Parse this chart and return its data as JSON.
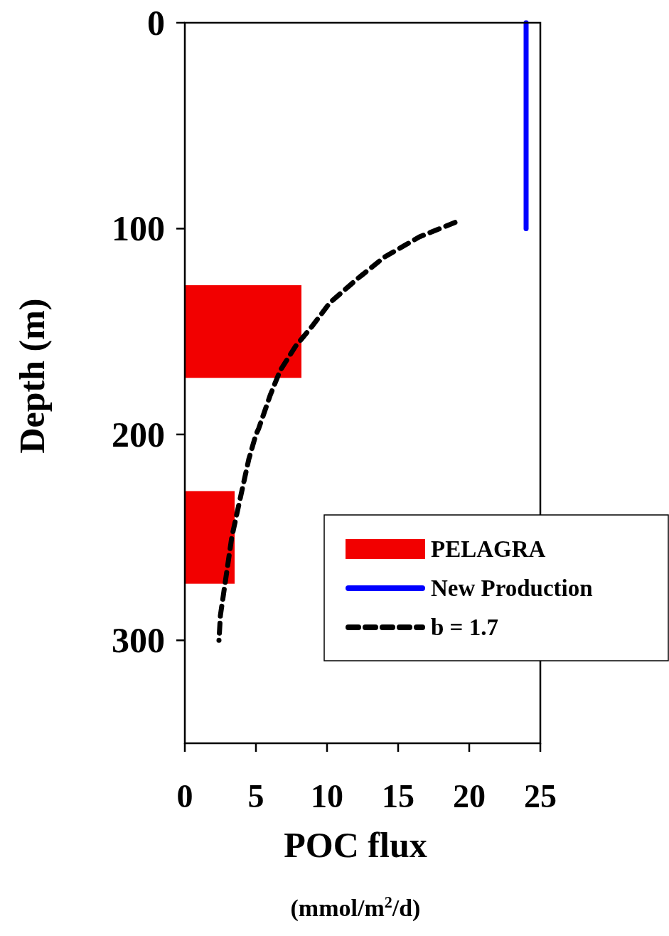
{
  "chart_data": {
    "type": "bar",
    "orientation": "horizontal",
    "xlabel": "POC flux\n(mmol/m$^{2}$/d)",
    "ylabel": "Depth (m)",
    "xlim": [
      0,
      25
    ],
    "xticks": [
      0,
      5,
      10,
      15,
      20,
      25
    ],
    "ylim": [
      350,
      0
    ],
    "yticks": [
      0,
      100,
      200,
      300
    ],
    "legend": "bottom right",
    "grid": false,
    "series": [
      {
        "name": "PELAGRA",
        "color": "#f20000",
        "x": [
          150,
          250
        ],
        "values": [
          8.2,
          3.5
        ]
      },
      {
        "name": "New Production",
        "type": "line",
        "color": "#0000ff",
        "line_style": "solid",
        "x": [
          0,
          100
        ],
        "values": [
          24,
          24
        ]
      },
      {
        "name": "b = 1.7",
        "type": "line",
        "color": "#000000",
        "line_style": "dashed",
        "x": [
          97,
          104,
          114,
          124,
          136,
          147,
          157,
          169,
          181,
          197,
          200,
          212,
          234,
          250,
          269,
          288,
          300
        ],
        "values": [
          19.0,
          16.5,
          14.0,
          12.2,
          10.2,
          9.0,
          7.8,
          6.7,
          6.0,
          5.2,
          5.0,
          4.5,
          3.8,
          3.3,
          2.9,
          2.5,
          2.4
        ]
      }
    ]
  }
}
